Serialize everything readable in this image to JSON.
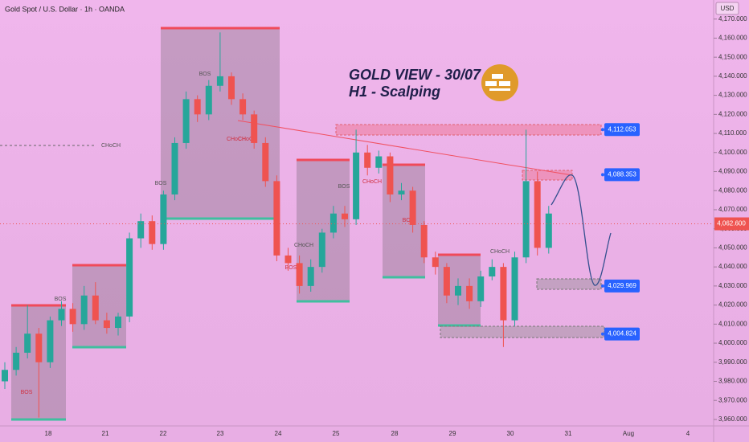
{
  "chart_data": {
    "type": "candlestick",
    "title": "Gold Spot / U.S. Dollar · 1h · OANDA",
    "headline": "GOLD VIEW - 30/07",
    "subheadline": "H1 - Scalping",
    "currency": "USD",
    "open": [
      3980,
      3986,
      3995,
      4005,
      3990,
      4012,
      4018,
      4010,
      4025,
      4012,
      4008,
      4014,
      4055,
      4064,
      4052,
      4078,
      4105,
      4128,
      4120,
      4135,
      4140,
      4128,
      4120,
      4105,
      4085,
      4046,
      4042,
      4030,
      4040,
      4058,
      4068,
      4065,
      4100,
      4092,
      4098,
      4078,
      4080,
      4062,
      4045,
      4040,
      4025,
      4030,
      4022,
      4035,
      4040,
      4012,
      4045,
      4085,
      4050
    ],
    "high": [
      3990,
      3998,
      4020,
      4008,
      4014,
      4022,
      4021,
      4030,
      4032,
      4016,
      4016,
      4058,
      4068,
      4067,
      4080,
      4108,
      4132,
      4130,
      4138,
      4163,
      4142,
      4131,
      4122,
      4108,
      4088,
      4050,
      4046,
      4044,
      4060,
      4072,
      4072,
      4112,
      4104,
      4101,
      4100,
      4084,
      4082,
      4064,
      4048,
      4042,
      4034,
      4034,
      4038,
      4044,
      4042,
      4048,
      4112,
      4090,
      4072
    ],
    "low": [
      3976,
      3983,
      3992,
      3961,
      3987,
      4009,
      4006,
      4007,
      4010,
      4005,
      4004,
      4011,
      4050,
      4049,
      4049,
      4075,
      4102,
      4116,
      4117,
      4132,
      4125,
      4117,
      4102,
      4082,
      4043,
      4038,
      4026,
      4027,
      4037,
      4055,
      4061,
      4062,
      4088,
      4089,
      4074,
      4075,
      4058,
      4042,
      4036,
      4021,
      4020,
      4018,
      4019,
      4033,
      3998,
      4009,
      4042,
      4046,
      4047
    ],
    "close": [
      3986,
      3995,
      4005,
      3990,
      4012,
      4018,
      4010,
      4025,
      4012,
      4008,
      4014,
      4055,
      4064,
      4052,
      4078,
      4105,
      4128,
      4120,
      4135,
      4140,
      4128,
      4120,
      4105,
      4085,
      4046,
      4042,
      4030,
      4040,
      4058,
      4068,
      4065,
      4100,
      4092,
      4098,
      4078,
      4080,
      4062,
      4045,
      4040,
      4025,
      4030,
      4022,
      4035,
      4040,
      4012,
      4045,
      4085,
      4050,
      4068
    ],
    "up_color": "#26a69a",
    "down_color": "#ef5350",
    "ylim": [
      3956.6,
      4180
    ],
    "yticks": [
      {
        "value": 3960,
        "label": "3,960.000"
      },
      {
        "value": 3970,
        "label": "3,970.000"
      },
      {
        "value": 3980,
        "label": "3,980.000"
      },
      {
        "value": 3990,
        "label": "3,990.000"
      },
      {
        "value": 4000,
        "label": "4,000.000"
      },
      {
        "value": 4010,
        "label": "4,010.000"
      },
      {
        "value": 4020,
        "label": "4,020.000"
      },
      {
        "value": 4030,
        "label": "4,030.000"
      },
      {
        "value": 4040,
        "label": "4,040.000"
      },
      {
        "value": 4050,
        "label": "4,050.000"
      },
      {
        "value": 4060,
        "label": "4,060.000"
      },
      {
        "value": 4070,
        "label": "4,070.000"
      },
      {
        "value": 4080,
        "label": "4,080.000"
      },
      {
        "value": 4090,
        "label": "4,090.000"
      },
      {
        "value": 4100,
        "label": "4,100.000"
      },
      {
        "value": 4110,
        "label": "4,110.000"
      },
      {
        "value": 4120,
        "label": "4,120.000"
      },
      {
        "value": 4130,
        "label": "4,130.000"
      },
      {
        "value": 4140,
        "label": "4,140.000"
      },
      {
        "value": 4150,
        "label": "4,150.000"
      },
      {
        "value": 4160,
        "label": "4,160.000"
      },
      {
        "value": 4170,
        "label": "4,170.000"
      }
    ],
    "x_labels": [
      "18",
      "21",
      "22",
      "23",
      "24",
      "25",
      "28",
      "29",
      "30",
      "31",
      "Aug",
      "4"
    ],
    "levels": [
      {
        "value": 4112.053,
        "label": "4,112.053"
      },
      {
        "value": 4088.353,
        "label": "4,088.353"
      },
      {
        "value": 4029.969,
        "label": "4,029.969"
      },
      {
        "value": 4004.824,
        "label": "4,004.824"
      }
    ],
    "last_price": {
      "value": 4062.6,
      "label": "4,062.600"
    },
    "annotations": [
      "CHoCH",
      "BOS",
      "BOS",
      "BOS",
      "BOS",
      "BOS",
      "BOS",
      "CHoCH",
      "CHoCH",
      "BOS",
      "CHoCH",
      "CHoCH",
      "CHoCH"
    ]
  }
}
